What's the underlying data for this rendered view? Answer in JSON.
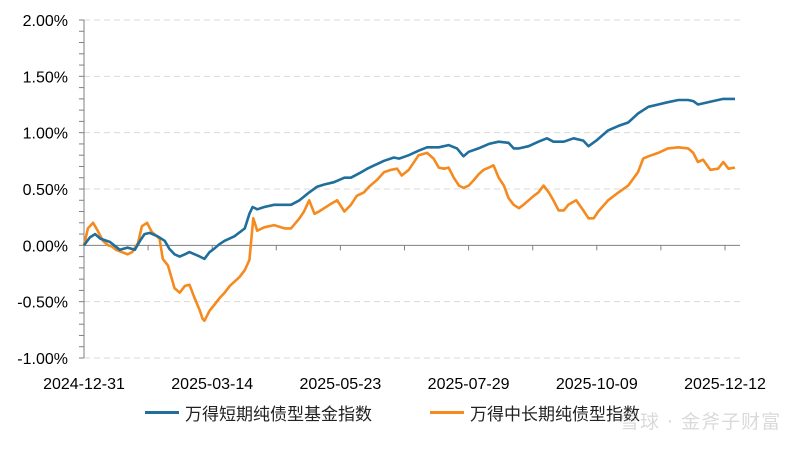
{
  "chart_data": {
    "type": "line",
    "title": "",
    "xlabel": "",
    "ylabel": "",
    "ylim": [
      -1.0,
      2.0
    ],
    "y_ticks": [
      "2.00%",
      "1.50%",
      "1.00%",
      "0.50%",
      "0.00%",
      "-0.50%",
      "-1.00%"
    ],
    "y_tick_values": [
      2.0,
      1.5,
      1.0,
      0.5,
      0.0,
      -0.5,
      -1.0
    ],
    "x_tick_labels": [
      "2024-12-31",
      "2025-03-14",
      "2025-05-23",
      "2025-07-29",
      "2025-10-09",
      "2025-12-12"
    ],
    "grid": "horizontal dashed",
    "legend_position": "bottom",
    "series": [
      {
        "name": "万得短期纯债型基金指数",
        "color": "#1F6E9C",
        "points": [
          [
            0,
            0.0
          ],
          [
            0.009,
            0.07
          ],
          [
            0.017,
            0.1
          ],
          [
            0.025,
            0.06
          ],
          [
            0.04,
            0.03
          ],
          [
            0.055,
            -0.04
          ],
          [
            0.067,
            -0.02
          ],
          [
            0.078,
            -0.04
          ],
          [
            0.086,
            0.04
          ],
          [
            0.093,
            0.1
          ],
          [
            0.101,
            0.11
          ],
          [
            0.113,
            0.08
          ],
          [
            0.124,
            0.04
          ],
          [
            0.131,
            -0.03
          ],
          [
            0.139,
            -0.08
          ],
          [
            0.147,
            -0.1
          ],
          [
            0.155,
            -0.08
          ],
          [
            0.162,
            -0.06
          ],
          [
            0.17,
            -0.08
          ],
          [
            0.178,
            -0.1
          ],
          [
            0.185,
            -0.12
          ],
          [
            0.193,
            -0.06
          ],
          [
            0.2,
            -0.03
          ],
          [
            0.208,
            0.01
          ],
          [
            0.216,
            0.04
          ],
          [
            0.231,
            0.08
          ],
          [
            0.247,
            0.15
          ],
          [
            0.254,
            0.28
          ],
          [
            0.259,
            0.34
          ],
          [
            0.266,
            0.32
          ],
          [
            0.277,
            0.34
          ],
          [
            0.292,
            0.36
          ],
          [
            0.308,
            0.36
          ],
          [
            0.318,
            0.36
          ],
          [
            0.331,
            0.4
          ],
          [
            0.346,
            0.47
          ],
          [
            0.358,
            0.52
          ],
          [
            0.369,
            0.54
          ],
          [
            0.384,
            0.56
          ],
          [
            0.4,
            0.6
          ],
          [
            0.41,
            0.6
          ],
          [
            0.423,
            0.64
          ],
          [
            0.435,
            0.68
          ],
          [
            0.446,
            0.71
          ],
          [
            0.461,
            0.75
          ],
          [
            0.476,
            0.78
          ],
          [
            0.484,
            0.77
          ],
          [
            0.499,
            0.8
          ],
          [
            0.514,
            0.84
          ],
          [
            0.527,
            0.87
          ],
          [
            0.545,
            0.87
          ],
          [
            0.56,
            0.89
          ],
          [
            0.573,
            0.86
          ],
          [
            0.583,
            0.79
          ],
          [
            0.591,
            0.83
          ],
          [
            0.606,
            0.86
          ],
          [
            0.622,
            0.9
          ],
          [
            0.637,
            0.92
          ],
          [
            0.652,
            0.91
          ],
          [
            0.66,
            0.86
          ],
          [
            0.668,
            0.86
          ],
          [
            0.683,
            0.88
          ],
          [
            0.698,
            0.92
          ],
          [
            0.711,
            0.95
          ],
          [
            0.721,
            0.92
          ],
          [
            0.737,
            0.92
          ],
          [
            0.752,
            0.95
          ],
          [
            0.767,
            0.93
          ],
          [
            0.775,
            0.88
          ],
          [
            0.787,
            0.93
          ],
          [
            0.805,
            1.02
          ],
          [
            0.821,
            1.06
          ],
          [
            0.836,
            1.09
          ],
          [
            0.851,
            1.17
          ],
          [
            0.867,
            1.23
          ],
          [
            0.882,
            1.25
          ],
          [
            0.897,
            1.27
          ],
          [
            0.913,
            1.29
          ],
          [
            0.928,
            1.29
          ],
          [
            0.936,
            1.28
          ],
          [
            0.943,
            1.25
          ],
          [
            0.951,
            1.26
          ],
          [
            0.966,
            1.28
          ],
          [
            0.982,
            1.3
          ],
          [
            1.0,
            1.3
          ]
        ]
      },
      {
        "name": "万得中长期纯债型指数",
        "color": "#F58A1F",
        "points": [
          [
            0,
            0.0
          ],
          [
            0.006,
            0.15
          ],
          [
            0.014,
            0.2
          ],
          [
            0.021,
            0.13
          ],
          [
            0.029,
            0.04
          ],
          [
            0.037,
            0.0
          ],
          [
            0.043,
            -0.01
          ],
          [
            0.049,
            -0.04
          ],
          [
            0.058,
            -0.06
          ],
          [
            0.067,
            -0.08
          ],
          [
            0.074,
            -0.06
          ],
          [
            0.083,
            0.02
          ],
          [
            0.089,
            0.17
          ],
          [
            0.097,
            0.2
          ],
          [
            0.104,
            0.12
          ],
          [
            0.116,
            0.06
          ],
          [
            0.121,
            -0.12
          ],
          [
            0.129,
            -0.18
          ],
          [
            0.139,
            -0.38
          ],
          [
            0.147,
            -0.42
          ],
          [
            0.155,
            -0.36
          ],
          [
            0.162,
            -0.35
          ],
          [
            0.17,
            -0.47
          ],
          [
            0.178,
            -0.58
          ],
          [
            0.182,
            -0.65
          ],
          [
            0.185,
            -0.67
          ],
          [
            0.193,
            -0.58
          ],
          [
            0.2,
            -0.53
          ],
          [
            0.208,
            -0.47
          ],
          [
            0.216,
            -0.42
          ],
          [
            0.224,
            -0.36
          ],
          [
            0.239,
            -0.28
          ],
          [
            0.247,
            -0.22
          ],
          [
            0.254,
            -0.13
          ],
          [
            0.26,
            0.24
          ],
          [
            0.266,
            0.13
          ],
          [
            0.277,
            0.16
          ],
          [
            0.292,
            0.18
          ],
          [
            0.308,
            0.15
          ],
          [
            0.318,
            0.15
          ],
          [
            0.331,
            0.24
          ],
          [
            0.338,
            0.3
          ],
          [
            0.346,
            0.4
          ],
          [
            0.354,
            0.28
          ],
          [
            0.361,
            0.3
          ],
          [
            0.377,
            0.36
          ],
          [
            0.389,
            0.4
          ],
          [
            0.4,
            0.3
          ],
          [
            0.41,
            0.36
          ],
          [
            0.419,
            0.44
          ],
          [
            0.43,
            0.47
          ],
          [
            0.438,
            0.52
          ],
          [
            0.45,
            0.58
          ],
          [
            0.461,
            0.65
          ],
          [
            0.472,
            0.67
          ],
          [
            0.481,
            0.68
          ],
          [
            0.488,
            0.62
          ],
          [
            0.499,
            0.67
          ],
          [
            0.514,
            0.8
          ],
          [
            0.527,
            0.82
          ],
          [
            0.537,
            0.77
          ],
          [
            0.545,
            0.69
          ],
          [
            0.553,
            0.68
          ],
          [
            0.56,
            0.69
          ],
          [
            0.568,
            0.6
          ],
          [
            0.576,
            0.53
          ],
          [
            0.583,
            0.51
          ],
          [
            0.591,
            0.53
          ],
          [
            0.599,
            0.58
          ],
          [
            0.606,
            0.63
          ],
          [
            0.614,
            0.67
          ],
          [
            0.622,
            0.69
          ],
          [
            0.629,
            0.71
          ],
          [
            0.637,
            0.6
          ],
          [
            0.645,
            0.53
          ],
          [
            0.652,
            0.42
          ],
          [
            0.66,
            0.36
          ],
          [
            0.668,
            0.33
          ],
          [
            0.675,
            0.36
          ],
          [
            0.683,
            0.4
          ],
          [
            0.691,
            0.44
          ],
          [
            0.698,
            0.47
          ],
          [
            0.706,
            0.53
          ],
          [
            0.714,
            0.47
          ],
          [
            0.721,
            0.4
          ],
          [
            0.729,
            0.31
          ],
          [
            0.737,
            0.31
          ],
          [
            0.744,
            0.36
          ],
          [
            0.756,
            0.4
          ],
          [
            0.767,
            0.31
          ],
          [
            0.775,
            0.24
          ],
          [
            0.783,
            0.24
          ],
          [
            0.79,
            0.3
          ],
          [
            0.805,
            0.4
          ],
          [
            0.821,
            0.47
          ],
          [
            0.836,
            0.53
          ],
          [
            0.851,
            0.65
          ],
          [
            0.859,
            0.77
          ],
          [
            0.867,
            0.79
          ],
          [
            0.882,
            0.82
          ],
          [
            0.897,
            0.86
          ],
          [
            0.913,
            0.87
          ],
          [
            0.928,
            0.86
          ],
          [
            0.936,
            0.82
          ],
          [
            0.943,
            0.74
          ],
          [
            0.951,
            0.76
          ],
          [
            0.962,
            0.67
          ],
          [
            0.974,
            0.68
          ],
          [
            0.982,
            0.74
          ],
          [
            0.99,
            0.68
          ],
          [
            1.0,
            0.69
          ]
        ]
      }
    ]
  },
  "legend": {
    "items": [
      {
        "label": "万得短期纯债型基金指数",
        "color": "#1F6E9C"
      },
      {
        "label": "万得中长期纯债型指数",
        "color": "#F58A1F"
      }
    ]
  },
  "watermark": "雪球 · 金斧子财富"
}
